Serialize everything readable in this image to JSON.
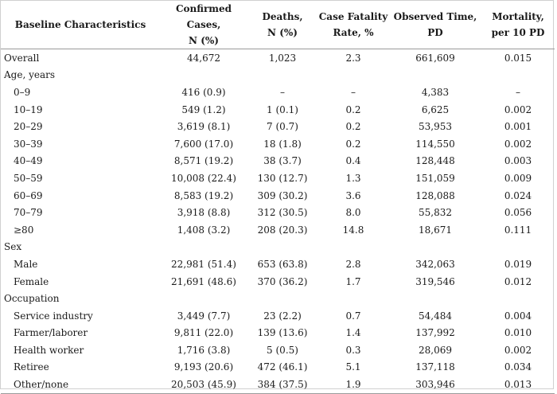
{
  "headers": [
    {
      "line1": "Baseline Characteristics",
      "line2": ""
    },
    {
      "line1": "Confirmed Cases,",
      "line2": "N (%)"
    },
    {
      "line1": "Deaths,",
      "line2": "N (%)"
    },
    {
      "line1": "Case Fatality",
      "line2": "Rate, %"
    },
    {
      "line1": "Observed Time,",
      "line2": "PD"
    },
    {
      "line1": "Mortality,",
      "line2": "per 10 PD"
    }
  ],
  "rows": [
    {
      "type": "data",
      "indent": false,
      "cells": [
        "Overall",
        "44,672",
        "1,023",
        "2.3",
        "661,609",
        "0.015"
      ]
    },
    {
      "type": "group",
      "indent": false,
      "cells": [
        "Age, years",
        "",
        "",
        "",
        "",
        ""
      ]
    },
    {
      "type": "data",
      "indent": true,
      "cells": [
        "0–9",
        "416 (0.9)",
        "–",
        "–",
        "4,383",
        "–"
      ]
    },
    {
      "type": "data",
      "indent": true,
      "cells": [
        "10–19",
        "549 (1.2)",
        "1 (0.1)",
        "0.2",
        "6,625",
        "0.002"
      ]
    },
    {
      "type": "data",
      "indent": true,
      "cells": [
        "20–29",
        "3,619 (8.1)",
        "7 (0.7)",
        "0.2",
        "53,953",
        "0.001"
      ]
    },
    {
      "type": "data",
      "indent": true,
      "cells": [
        "30–39",
        "7,600 (17.0)",
        "18 (1.8)",
        "0.2",
        "114,550",
        "0.002"
      ]
    },
    {
      "type": "data",
      "indent": true,
      "cells": [
        "40–49",
        "8,571 (19.2)",
        "38 (3.7)",
        "0.4",
        "128,448",
        "0.003"
      ]
    },
    {
      "type": "data",
      "indent": true,
      "cells": [
        "50–59",
        "10,008 (22.4)",
        "130 (12.7)",
        "1.3",
        "151,059",
        "0.009"
      ]
    },
    {
      "type": "data",
      "indent": true,
      "cells": [
        "60–69",
        "8,583 (19.2)",
        "309 (30.2)",
        "3.6",
        "128,088",
        "0.024"
      ]
    },
    {
      "type": "data",
      "indent": true,
      "cells": [
        "70–79",
        "3,918 (8.8)",
        "312 (30.5)",
        "8.0",
        "55,832",
        "0.056"
      ]
    },
    {
      "type": "data",
      "indent": true,
      "cells": [
        "≥80",
        "1,408 (3.2)",
        "208 (20.3)",
        "14.8",
        "18,671",
        "0.111"
      ]
    },
    {
      "type": "group",
      "indent": false,
      "cells": [
        "Sex",
        "",
        "",
        "",
        "",
        ""
      ]
    },
    {
      "type": "data",
      "indent": true,
      "cells": [
        "Male",
        "22,981 (51.4)",
        "653 (63.8)",
        "2.8",
        "342,063",
        "0.019"
      ]
    },
    {
      "type": "data",
      "indent": true,
      "cells": [
        "Female",
        "21,691 (48.6)",
        "370 (36.2)",
        "1.7",
        "319,546",
        "0.012"
      ]
    },
    {
      "type": "group",
      "indent": false,
      "cells": [
        "Occupation",
        "",
        "",
        "",
        "",
        ""
      ]
    },
    {
      "type": "data",
      "indent": true,
      "cells": [
        "Service industry",
        "3,449 (7.7)",
        "23 (2.2)",
        "0.7",
        "54,484",
        "0.004"
      ]
    },
    {
      "type": "data",
      "indent": true,
      "cells": [
        "Farmer/laborer",
        "9,811 (22.0)",
        "139 (13.6)",
        "1.4",
        "137,992",
        "0.010"
      ]
    },
    {
      "type": "data",
      "indent": true,
      "cells": [
        "Health worker",
        "1,716 (3.8)",
        "5 (0.5)",
        "0.3",
        "28,069",
        "0.002"
      ]
    },
    {
      "type": "data",
      "indent": true,
      "cells": [
        "Retiree",
        "9,193 (20.6)",
        "472 (46.1)",
        "5.1",
        "137,118",
        "0.034"
      ]
    },
    {
      "type": "data",
      "indent": true,
      "cells": [
        "Other/none",
        "20,503 (45.9)",
        "384 (37.5)",
        "1.9",
        "303,946",
        "0.013"
      ]
    }
  ]
}
